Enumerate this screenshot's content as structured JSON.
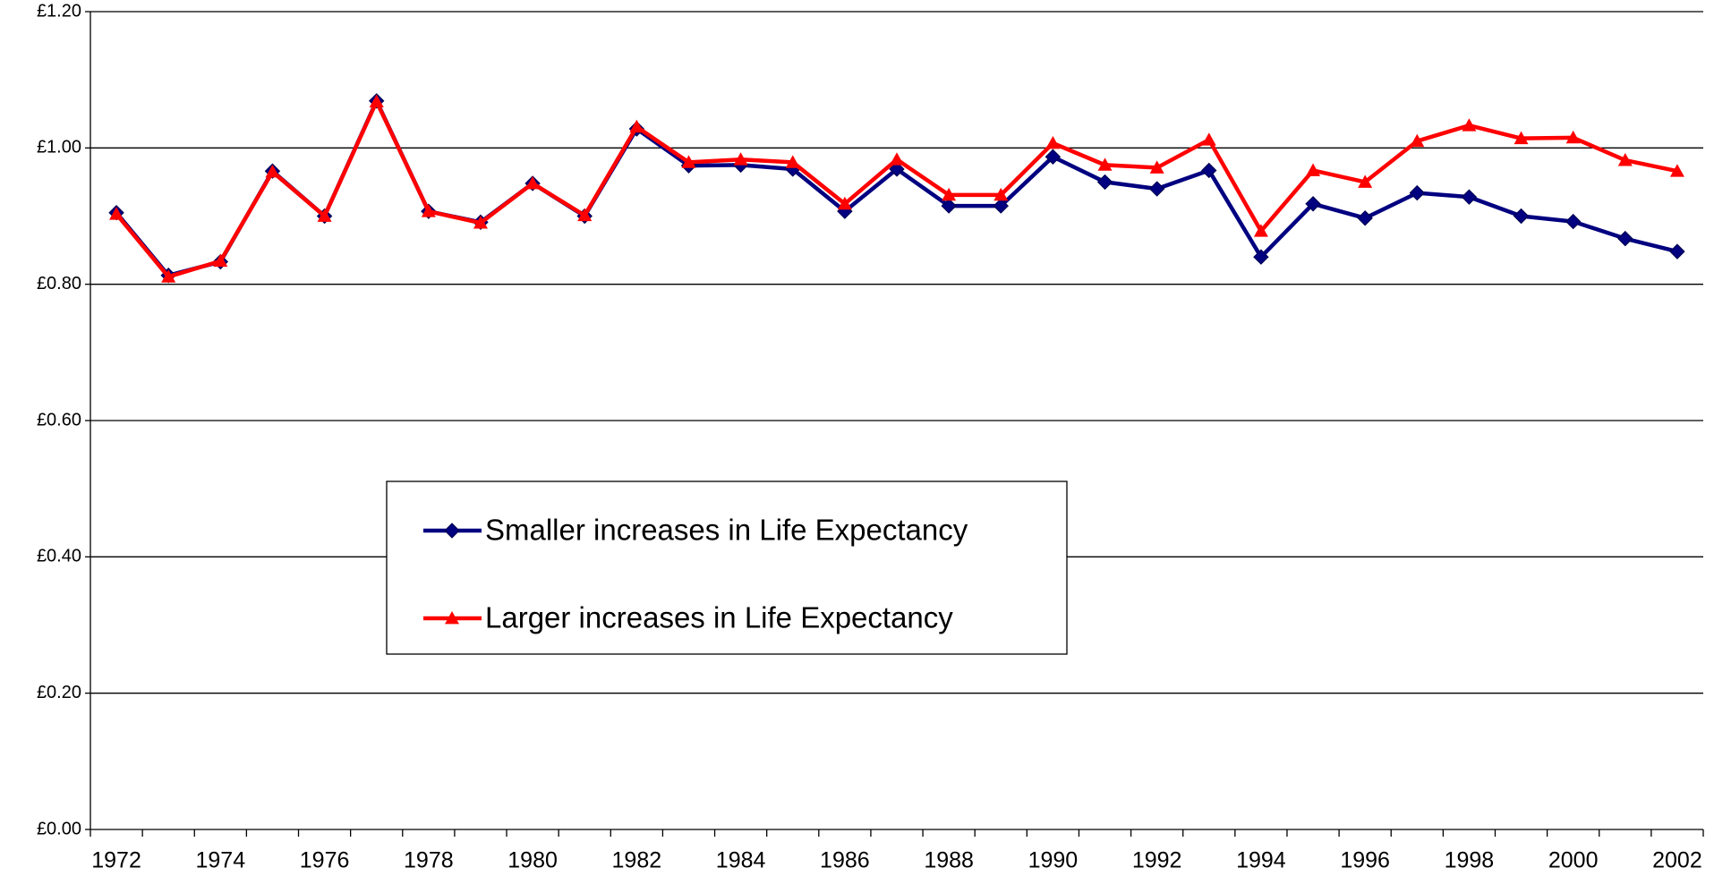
{
  "chart_data": {
    "type": "line",
    "categories": [
      "1972",
      null,
      "1974",
      null,
      "1976",
      null,
      "1978",
      null,
      "1980",
      null,
      "1982",
      null,
      "1984",
      null,
      "1986",
      null,
      "1988",
      null,
      "1990",
      null,
      "1992",
      null,
      "1994",
      null,
      "1996",
      null,
      "1998",
      null,
      "2000",
      null,
      "2002"
    ],
    "series": [
      {
        "name": "Smaller increases in Life Expectancy",
        "color": "#000080",
        "marker": "diamond",
        "values": [
          0.905,
          0.813,
          0.833,
          0.966,
          0.9,
          1.069,
          0.907,
          0.891,
          0.948,
          0.9,
          1.028,
          0.974,
          0.975,
          0.969,
          0.907,
          0.969,
          0.915,
          0.915,
          0.987,
          0.95,
          0.94,
          0.967,
          0.84,
          0.918,
          0.897,
          0.934,
          0.928,
          0.9,
          0.892,
          0.867,
          0.848
        ]
      },
      {
        "name": "Larger increases in Life Expectancy",
        "color": "#ff0000",
        "marker": "triangle",
        "values": [
          0.903,
          0.811,
          0.834,
          0.965,
          0.9,
          1.068,
          0.907,
          0.89,
          0.948,
          0.901,
          1.031,
          0.979,
          0.983,
          0.979,
          0.918,
          0.983,
          0.931,
          0.931,
          1.007,
          0.975,
          0.971,
          1.012,
          0.878,
          0.967,
          0.95,
          1.01,
          1.033,
          1.014,
          1.015,
          0.982,
          0.966
        ]
      }
    ],
    "ylim": [
      0,
      1.2
    ],
    "yticks": [
      {
        "value": 0,
        "label": "£0.00"
      },
      {
        "value": 0.2,
        "label": "£0.20"
      },
      {
        "value": 0.4,
        "label": "£0.40"
      },
      {
        "value": 0.6,
        "label": "£0.60"
      },
      {
        "value": 0.8,
        "label": "£0.80"
      },
      {
        "value": 1.0,
        "label": "£1.00"
      },
      {
        "value": 1.2,
        "label": "£1.20"
      }
    ],
    "grid": true
  }
}
